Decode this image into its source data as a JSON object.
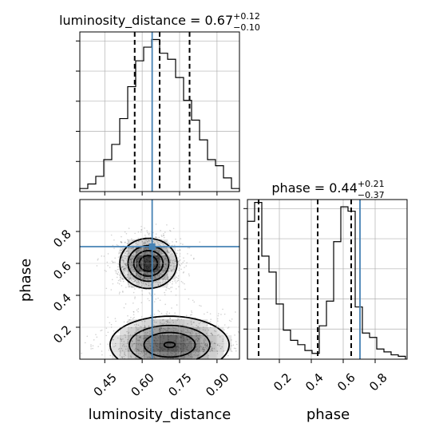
{
  "chart_data": {
    "type": "corner",
    "params": [
      "luminosity_distance",
      "phase"
    ],
    "truths": {
      "luminosity_distance": 0.64,
      "phase": 0.705
    },
    "colors": {
      "truth": "#4682b4",
      "hist": "#000000",
      "grid": "#b0b0b0",
      "density": "#000000"
    },
    "marginals": [
      {
        "param": "luminosity_distance",
        "title": {
          "main": "luminosity_distance = 0.67",
          "sup": "+0.12",
          "sub": "−0.10"
        },
        "xlim": [
          0.35,
          0.99
        ],
        "ymax": 1.05,
        "bin_edges": [
          0.35,
          0.382,
          0.414,
          0.446,
          0.478,
          0.51,
          0.542,
          0.574,
          0.606,
          0.638,
          0.67,
          0.702,
          0.734,
          0.766,
          0.798,
          0.83,
          0.862,
          0.894,
          0.926,
          0.958,
          0.99
        ],
        "counts": [
          0.02,
          0.05,
          0.1,
          0.21,
          0.31,
          0.48,
          0.69,
          0.86,
          0.95,
          1.0,
          0.91,
          0.87,
          0.75,
          0.6,
          0.47,
          0.34,
          0.21,
          0.17,
          0.09,
          0.02
        ],
        "quantiles": [
          0.57,
          0.67,
          0.79
        ],
        "grid": true
      },
      {
        "param": "phase",
        "title": {
          "main": "phase = 0.44",
          "sup": "+0.21",
          "sub": "−0.37"
        },
        "xlim": [
          0.0,
          1.0
        ],
        "ymax": 1.1,
        "bin_edges": [
          0.0,
          0.045,
          0.09,
          0.135,
          0.18,
          0.225,
          0.27,
          0.315,
          0.36,
          0.405,
          0.45,
          0.495,
          0.54,
          0.585,
          0.63,
          0.675,
          0.72,
          0.765,
          0.81,
          0.855,
          0.9,
          0.945,
          0.99
        ],
        "counts": [
          0.95,
          1.08,
          0.71,
          0.6,
          0.38,
          0.2,
          0.13,
          0.1,
          0.06,
          0.04,
          0.23,
          0.4,
          0.81,
          1.05,
          1.02,
          0.36,
          0.18,
          0.15,
          0.07,
          0.05,
          0.03,
          0.02
        ],
        "quantiles": [
          0.07,
          0.44,
          0.65
        ],
        "grid": true
      }
    ],
    "joint": {
      "x_param": "luminosity_distance",
      "y_param": "phase",
      "xlim": [
        0.35,
        0.99
      ],
      "ylim": [
        0.0,
        1.0
      ],
      "clusters": [
        {
          "x": 0.625,
          "y": 0.6,
          "sx": 0.055,
          "sy": 0.075,
          "weight": 0.55
        },
        {
          "x": 0.71,
          "y": 0.09,
          "sx": 0.12,
          "sy": 0.09,
          "weight": 0.45
        }
      ],
      "contour_levels": [
        0.12,
        0.35,
        0.6,
        0.85
      ],
      "truth_point": [
        0.64,
        0.705
      ]
    },
    "axes": {
      "luminosity_distance": {
        "label": "luminosity_distance",
        "ticks": [
          0.45,
          0.6,
          0.75,
          0.9
        ],
        "tick_labels": [
          "0.45",
          "0.60",
          "0.75",
          "0.90"
        ]
      },
      "phase": {
        "label": "phase",
        "ticks": [
          0.2,
          0.4,
          0.6,
          0.8
        ],
        "tick_labels": [
          "0.2",
          "0.4",
          "0.6",
          "0.8"
        ]
      }
    }
  }
}
